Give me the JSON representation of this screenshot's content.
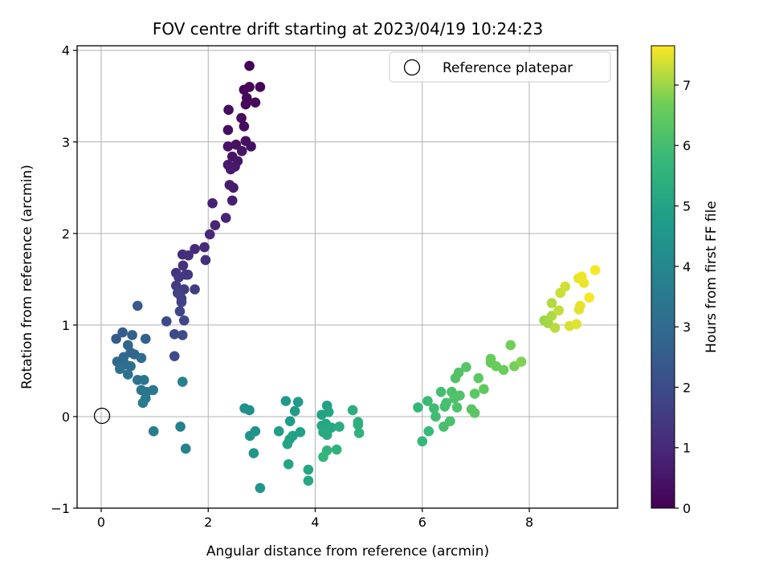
{
  "chart_data": {
    "type": "scatter",
    "title": "FOV centre drift starting at 2023/04/19 10:24:23",
    "xlabel": "Angular distance from reference (arcmin)",
    "ylabel": "Rotation from reference (arcmin)",
    "xlim": [
      -0.45,
      9.65
    ],
    "ylim": [
      -1.0,
      4.05
    ],
    "xticks": [
      0,
      2,
      4,
      6,
      8
    ],
    "yticks": [
      -1,
      0,
      1,
      2,
      3,
      4
    ],
    "xtick_labels": [
      "0",
      "2",
      "4",
      "6",
      "8"
    ],
    "ytick_labels": [
      "−1",
      "0",
      "1",
      "2",
      "3",
      "4"
    ],
    "grid": true,
    "legend": {
      "placement": "top-right",
      "entries": [
        "Reference platepar"
      ]
    },
    "reference_point": {
      "x": 0,
      "y": 0,
      "label": "Reference platepar"
    },
    "colorbar": {
      "label": "Hours from first FF file",
      "colormap": "viridis",
      "range": [
        0,
        7.65
      ],
      "ticks": [
        0,
        1,
        2,
        3,
        4,
        5,
        6,
        7
      ],
      "tick_labels": [
        "0",
        "1",
        "2",
        "3",
        "4",
        "5",
        "6",
        "7"
      ]
    },
    "points": [
      [
        2.77,
        3.83,
        0.05
      ],
      [
        2.67,
        3.57,
        0.08
      ],
      [
        2.77,
        3.6,
        0.1
      ],
      [
        2.97,
        3.6,
        0.12
      ],
      [
        2.72,
        3.48,
        0.15
      ],
      [
        2.7,
        3.41,
        0.18
      ],
      [
        2.88,
        3.43,
        0.2
      ],
      [
        2.62,
        3.26,
        0.25
      ],
      [
        2.38,
        3.35,
        0.28
      ],
      [
        2.67,
        3.17,
        0.3
      ],
      [
        2.37,
        3.13,
        0.35
      ],
      [
        2.7,
        3.01,
        0.38
      ],
      [
        2.52,
        2.97,
        0.4
      ],
      [
        2.8,
        2.95,
        0.42
      ],
      [
        2.37,
        2.95,
        0.45
      ],
      [
        2.63,
        2.9,
        0.48
      ],
      [
        2.45,
        2.84,
        0.5
      ],
      [
        2.55,
        2.79,
        0.55
      ],
      [
        2.37,
        2.75,
        0.58
      ],
      [
        2.5,
        2.73,
        0.6
      ],
      [
        2.42,
        2.7,
        0.62
      ],
      [
        2.47,
        2.5,
        0.65
      ],
      [
        2.4,
        2.53,
        0.7
      ],
      [
        2.45,
        2.36,
        0.72
      ],
      [
        2.08,
        2.33,
        0.8
      ],
      [
        2.33,
        2.17,
        0.85
      ],
      [
        2.13,
        2.09,
        0.9
      ],
      [
        2.03,
        1.99,
        0.95
      ],
      [
        1.93,
        1.85,
        1.0
      ],
      [
        1.75,
        1.83,
        1.05
      ],
      [
        1.52,
        1.77,
        1.1
      ],
      [
        1.63,
        1.76,
        1.15
      ],
      [
        1.95,
        1.71,
        1.2
      ],
      [
        1.53,
        1.65,
        1.25
      ],
      [
        1.4,
        1.57,
        1.3
      ],
      [
        1.58,
        1.55,
        1.35
      ],
      [
        1.45,
        1.52,
        1.4
      ],
      [
        1.62,
        1.55,
        1.45
      ],
      [
        1.4,
        1.43,
        1.5
      ],
      [
        1.55,
        1.39,
        1.55
      ],
      [
        1.75,
        1.39,
        1.6
      ],
      [
        1.5,
        1.29,
        1.65
      ],
      [
        1.43,
        1.35,
        1.7
      ],
      [
        1.5,
        1.25,
        1.75
      ],
      [
        1.47,
        1.15,
        1.8
      ],
      [
        1.55,
        1.05,
        1.85
      ],
      [
        1.22,
        1.04,
        1.9
      ],
      [
        1.37,
        0.9,
        1.95
      ],
      [
        1.52,
        0.89,
        2.0
      ],
      [
        1.37,
        0.66,
        2.05
      ],
      [
        0.68,
        1.21,
        2.4
      ],
      [
        0.28,
        0.85,
        2.5
      ],
      [
        0.4,
        0.92,
        2.55
      ],
      [
        0.58,
        0.89,
        2.6
      ],
      [
        0.83,
        0.85,
        2.65
      ],
      [
        0.5,
        0.78,
        2.7
      ],
      [
        0.55,
        0.7,
        2.75
      ],
      [
        0.42,
        0.65,
        2.8
      ],
      [
        0.62,
        0.68,
        2.85
      ],
      [
        0.3,
        0.6,
        2.9
      ],
      [
        0.4,
        0.62,
        2.95
      ],
      [
        0.75,
        0.64,
        3.0
      ],
      [
        0.45,
        0.57,
        3.05
      ],
      [
        0.55,
        0.55,
        3.1
      ],
      [
        0.35,
        0.52,
        3.15
      ],
      [
        0.5,
        0.46,
        3.2
      ],
      [
        0.68,
        0.4,
        3.25
      ],
      [
        0.8,
        0.4,
        3.3
      ],
      [
        0.75,
        0.29,
        3.35
      ],
      [
        0.85,
        0.27,
        3.4
      ],
      [
        0.97,
        0.29,
        3.45
      ],
      [
        0.83,
        0.2,
        3.5
      ],
      [
        0.78,
        0.15,
        3.55
      ],
      [
        0.98,
        -0.16,
        3.65
      ],
      [
        1.52,
        0.38,
        3.75
      ],
      [
        1.48,
        -0.11,
        3.8
      ],
      [
        1.58,
        -0.35,
        3.85
      ],
      [
        2.68,
        0.09,
        4.3
      ],
      [
        2.77,
        0.07,
        4.35
      ],
      [
        2.88,
        -0.16,
        4.4
      ],
      [
        2.78,
        -0.21,
        4.45
      ],
      [
        2.85,
        -0.4,
        4.5
      ],
      [
        2.97,
        -0.78,
        4.55
      ],
      [
        3.45,
        0.17,
        4.6
      ],
      [
        3.68,
        0.16,
        4.65
      ],
      [
        3.62,
        0.06,
        4.7
      ],
      [
        3.53,
        -0.05,
        4.75
      ],
      [
        3.32,
        -0.16,
        4.8
      ],
      [
        3.72,
        -0.17,
        4.85
      ],
      [
        3.58,
        -0.21,
        4.9
      ],
      [
        3.52,
        -0.25,
        4.95
      ],
      [
        3.48,
        -0.3,
        5.0
      ],
      [
        3.5,
        -0.52,
        5.05
      ],
      [
        3.87,
        -0.58,
        5.1
      ],
      [
        3.87,
        -0.7,
        5.15
      ],
      [
        4.22,
        0.12,
        4.9
      ],
      [
        4.12,
        0.02,
        4.95
      ],
      [
        4.25,
        0.05,
        5.0
      ],
      [
        4.2,
        -0.08,
        5.05
      ],
      [
        4.12,
        -0.1,
        5.1
      ],
      [
        4.3,
        -0.12,
        5.15
      ],
      [
        4.15,
        -0.17,
        5.2
      ],
      [
        4.22,
        -0.2,
        5.25
      ],
      [
        4.45,
        -0.11,
        5.3
      ],
      [
        4.7,
        0.07,
        5.35
      ],
      [
        4.8,
        -0.06,
        5.4
      ],
      [
        4.8,
        -0.09,
        5.45
      ],
      [
        4.82,
        -0.18,
        5.5
      ],
      [
        4.4,
        -0.36,
        5.55
      ],
      [
        4.22,
        -0.37,
        5.6
      ],
      [
        4.15,
        -0.44,
        5.65
      ],
      [
        5.92,
        0.1,
        5.7
      ],
      [
        6.0,
        -0.27,
        5.75
      ],
      [
        6.12,
        -0.16,
        5.8
      ],
      [
        6.1,
        0.17,
        5.85
      ],
      [
        6.22,
        0.09,
        5.9
      ],
      [
        6.25,
        0.0,
        5.95
      ],
      [
        6.35,
        0.27,
        6.0
      ],
      [
        6.42,
        0.11,
        6.0
      ],
      [
        6.4,
        -0.11,
        6.05
      ],
      [
        6.45,
        0.15,
        6.05
      ],
      [
        6.52,
        -0.05,
        6.1
      ],
      [
        6.55,
        0.27,
        6.1
      ],
      [
        6.6,
        0.2,
        6.15
      ],
      [
        6.65,
        0.1,
        6.15
      ],
      [
        6.7,
        0.23,
        6.2
      ],
      [
        6.62,
        0.42,
        6.2
      ],
      [
        6.68,
        0.48,
        6.25
      ],
      [
        6.82,
        0.54,
        6.3
      ],
      [
        6.92,
        0.08,
        6.3
      ],
      [
        6.98,
        0.04,
        6.35
      ],
      [
        6.98,
        0.25,
        6.35
      ],
      [
        7.05,
        0.42,
        6.4
      ],
      [
        7.15,
        0.3,
        6.45
      ],
      [
        7.28,
        0.59,
        6.5
      ],
      [
        7.28,
        0.63,
        6.55
      ],
      [
        7.38,
        0.55,
        6.6
      ],
      [
        7.52,
        0.51,
        6.65
      ],
      [
        7.65,
        0.78,
        6.7
      ],
      [
        7.72,
        0.55,
        6.75
      ],
      [
        7.85,
        0.6,
        6.8
      ],
      [
        8.28,
        1.05,
        7.0
      ],
      [
        8.35,
        1.02,
        7.05
      ],
      [
        8.42,
        1.1,
        7.1
      ],
      [
        8.42,
        1.24,
        7.15
      ],
      [
        8.48,
        0.97,
        7.2
      ],
      [
        8.55,
        1.16,
        7.25
      ],
      [
        8.58,
        1.35,
        7.3
      ],
      [
        8.67,
        1.42,
        7.35
      ],
      [
        8.75,
        0.99,
        7.4
      ],
      [
        8.88,
        1.01,
        7.45
      ],
      [
        8.93,
        1.17,
        7.45
      ],
      [
        8.95,
        1.21,
        7.5
      ],
      [
        8.92,
        1.51,
        7.5
      ],
      [
        8.98,
        1.53,
        7.55
      ],
      [
        9.02,
        1.46,
        7.55
      ],
      [
        9.12,
        1.3,
        7.6
      ],
      [
        9.23,
        1.6,
        7.6
      ]
    ]
  }
}
